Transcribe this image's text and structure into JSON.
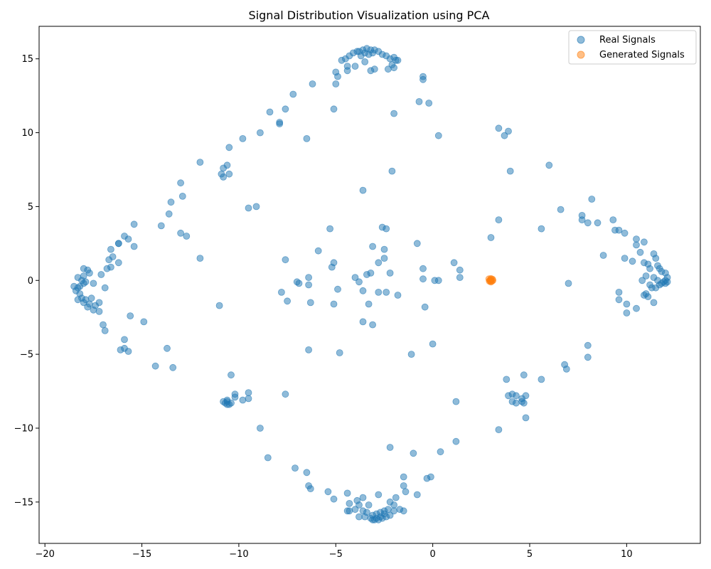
{
  "chart_data": {
    "type": "scatter",
    "title": "Signal Distribution Visualization using PCA",
    "xlabel": "",
    "ylabel": "",
    "xlim": [
      -20.3,
      13.8
    ],
    "ylim": [
      -17.8,
      17.2
    ],
    "xticks": [
      -20,
      -15,
      -10,
      -5,
      0,
      5,
      10
    ],
    "yticks": [
      -15,
      -10,
      -5,
      0,
      5,
      10,
      15
    ],
    "grid": false,
    "legend_position": "top-right",
    "series": [
      {
        "name": "Real Signals",
        "color": "#1f77b4",
        "points": [
          [
            -3.4,
            15.7
          ],
          [
            -3.6,
            15.6
          ],
          [
            -3.2,
            15.6
          ],
          [
            -3.0,
            15.6
          ],
          [
            -3.8,
            15.5
          ],
          [
            -3.5,
            15.4
          ],
          [
            -3.3,
            15.3
          ],
          [
            -3.7,
            15.2
          ],
          [
            -3.1,
            15.4
          ],
          [
            -3.9,
            15.5
          ],
          [
            -4.1,
            15.4
          ],
          [
            -2.8,
            15.5
          ],
          [
            -2.6,
            15.3
          ],
          [
            -2.4,
            15.2
          ],
          [
            -2.2,
            15.0
          ],
          [
            -2.0,
            15.1
          ],
          [
            -4.3,
            15.2
          ],
          [
            -4.5,
            15.0
          ],
          [
            -4.7,
            14.9
          ],
          [
            -1.8,
            14.9
          ],
          [
            -1.9,
            14.9
          ],
          [
            -2.1,
            14.6
          ],
          [
            -2.3,
            14.3
          ],
          [
            -2.0,
            14.4
          ],
          [
            -3.0,
            14.3
          ],
          [
            -3.2,
            14.2
          ],
          [
            -3.5,
            14.8
          ],
          [
            -4.0,
            14.5
          ],
          [
            -4.4,
            14.5
          ],
          [
            -4.4,
            14.2
          ],
          [
            -5.0,
            14.1
          ],
          [
            -4.9,
            13.8
          ],
          [
            -5.0,
            13.3
          ],
          [
            -0.5,
            13.8
          ],
          [
            -0.5,
            13.6
          ],
          [
            -6.2,
            13.3
          ],
          [
            -7.2,
            12.6
          ],
          [
            -0.7,
            12.1
          ],
          [
            -0.2,
            12.0
          ],
          [
            -7.6,
            11.6
          ],
          [
            -8.4,
            11.4
          ],
          [
            -5.1,
            11.6
          ],
          [
            -2.0,
            11.3
          ],
          [
            -7.9,
            10.7
          ],
          [
            -7.9,
            10.6
          ],
          [
            -8.9,
            10.0
          ],
          [
            -9.8,
            9.6
          ],
          [
            -6.5,
            9.6
          ],
          [
            0.3,
            9.8
          ],
          [
            3.4,
            10.3
          ],
          [
            3.9,
            10.1
          ],
          [
            3.7,
            9.8
          ],
          [
            -10.5,
            9.0
          ],
          [
            -12.0,
            8.0
          ],
          [
            -10.6,
            7.8
          ],
          [
            -10.8,
            7.6
          ],
          [
            -10.5,
            7.2
          ],
          [
            -10.9,
            7.2
          ],
          [
            -10.8,
            7.0
          ],
          [
            -13.0,
            6.6
          ],
          [
            -2.1,
            7.4
          ],
          [
            4.0,
            7.4
          ],
          [
            6.0,
            7.8
          ],
          [
            -3.6,
            6.1
          ],
          [
            -12.9,
            5.7
          ],
          [
            -13.5,
            5.3
          ],
          [
            -9.5,
            4.9
          ],
          [
            -9.1,
            5.0
          ],
          [
            -13.6,
            4.5
          ],
          [
            -15.4,
            3.8
          ],
          [
            -14.0,
            3.7
          ],
          [
            3.4,
            4.1
          ],
          [
            6.6,
            4.8
          ],
          [
            8.2,
            5.5
          ],
          [
            7.7,
            4.4
          ],
          [
            7.7,
            4.1
          ],
          [
            8.0,
            3.9
          ],
          [
            8.5,
            3.9
          ],
          [
            9.3,
            4.1
          ],
          [
            9.4,
            3.4
          ],
          [
            9.6,
            3.4
          ],
          [
            9.9,
            3.2
          ],
          [
            5.6,
            3.5
          ],
          [
            -5.3,
            3.5
          ],
          [
            -2.6,
            3.6
          ],
          [
            -2.4,
            3.5
          ],
          [
            -13.0,
            3.2
          ],
          [
            -12.7,
            3.0
          ],
          [
            -15.9,
            3.0
          ],
          [
            -15.7,
            2.8
          ],
          [
            -16.2,
            2.5
          ],
          [
            -16.2,
            2.5
          ],
          [
            3.0,
            2.9
          ],
          [
            10.5,
            2.8
          ],
          [
            10.5,
            2.4
          ],
          [
            10.9,
            2.6
          ],
          [
            -15.4,
            2.3
          ],
          [
            -3.1,
            2.3
          ],
          [
            -2.5,
            2.1
          ],
          [
            -0.8,
            2.5
          ],
          [
            -5.9,
            2.0
          ],
          [
            -16.6,
            2.1
          ],
          [
            -16.5,
            1.6
          ],
          [
            -16.2,
            1.2
          ],
          [
            -16.7,
            1.4
          ],
          [
            -12.0,
            1.5
          ],
          [
            -7.6,
            1.4
          ],
          [
            -5.1,
            1.2
          ],
          [
            -2.5,
            1.5
          ],
          [
            -2.8,
            1.2
          ],
          [
            1.1,
            1.2
          ],
          [
            10.7,
            1.9
          ],
          [
            11.4,
            1.8
          ],
          [
            11.5,
            1.5
          ],
          [
            8.8,
            1.7
          ],
          [
            9.9,
            1.5
          ],
          [
            10.3,
            1.3
          ],
          [
            -17.8,
            0.7
          ],
          [
            -18.0,
            0.8
          ],
          [
            -17.7,
            0.5
          ],
          [
            -18.0,
            0.3
          ],
          [
            -18.3,
            0.2
          ],
          [
            -16.6,
            0.9
          ],
          [
            -16.8,
            0.8
          ],
          [
            -17.1,
            0.4
          ],
          [
            -5.2,
            0.9
          ],
          [
            -3.4,
            0.4
          ],
          [
            -3.2,
            0.5
          ],
          [
            -2.2,
            0.5
          ],
          [
            -4.0,
            0.2
          ],
          [
            -6.4,
            0.2
          ],
          [
            1.4,
            0.7
          ],
          [
            1.4,
            0.2
          ],
          [
            -0.5,
            0.8
          ],
          [
            -0.5,
            0.1
          ],
          [
            0.1,
            0.0
          ],
          [
            0.3,
            0.0
          ],
          [
            10.9,
            1.2
          ],
          [
            11.1,
            1.1
          ],
          [
            11.2,
            0.8
          ],
          [
            11.6,
            1.0
          ],
          [
            11.7,
            0.8
          ],
          [
            11.8,
            0.6
          ],
          [
            12.0,
            0.5
          ],
          [
            12.1,
            0.2
          ],
          [
            12.0,
            0.0
          ],
          [
            11.9,
            -0.1
          ],
          [
            12.0,
            -0.2
          ],
          [
            11.7,
            -0.3
          ],
          [
            11.5,
            -0.5
          ],
          [
            11.3,
            -0.5
          ],
          [
            11.2,
            -0.3
          ],
          [
            11.0,
            0.3
          ],
          [
            10.8,
            0.0
          ],
          [
            11.4,
            0.2
          ],
          [
            11.6,
            0.0
          ],
          [
            11.8,
            -0.2
          ],
          [
            12.1,
            -0.1
          ],
          [
            -18.5,
            -0.4
          ],
          [
            -18.3,
            -0.5
          ],
          [
            -18.4,
            -0.7
          ],
          [
            -18.2,
            -0.4
          ],
          [
            -18.0,
            -0.2
          ],
          [
            -17.9,
            -0.1
          ],
          [
            -18.1,
            0.0
          ],
          [
            -18.2,
            -0.9
          ],
          [
            -18.1,
            -1.2
          ],
          [
            -17.9,
            -1.3
          ],
          [
            -18.3,
            -1.3
          ],
          [
            -18.0,
            -1.5
          ],
          [
            -17.7,
            -1.6
          ],
          [
            -17.8,
            -1.8
          ],
          [
            -17.5,
            -2.0
          ],
          [
            -17.4,
            -1.7
          ],
          [
            -17.2,
            -1.5
          ],
          [
            -17.2,
            -2.1
          ],
          [
            -17.6,
            -1.2
          ],
          [
            -17.5,
            -0.2
          ],
          [
            -16.9,
            -0.5
          ],
          [
            -6.4,
            -0.3
          ],
          [
            -7.0,
            -0.1
          ],
          [
            -6.9,
            -0.2
          ],
          [
            -4.9,
            -0.6
          ],
          [
            -3.8,
            -0.1
          ],
          [
            -3.6,
            -0.7
          ],
          [
            -2.4,
            -0.8
          ],
          [
            -2.8,
            -0.8
          ],
          [
            -1.8,
            -1.0
          ],
          [
            -7.8,
            -0.8
          ],
          [
            7.0,
            -0.2
          ],
          [
            9.6,
            -0.8
          ],
          [
            9.6,
            -1.3
          ],
          [
            10.9,
            -1.0
          ],
          [
            11.0,
            -0.9
          ],
          [
            11.1,
            -1.1
          ],
          [
            11.4,
            -1.5
          ],
          [
            10.5,
            -1.9
          ],
          [
            10.0,
            -1.6
          ],
          [
            10.0,
            -2.2
          ],
          [
            -11.0,
            -1.7
          ],
          [
            -7.5,
            -1.4
          ],
          [
            -6.3,
            -1.5
          ],
          [
            -5.1,
            -1.6
          ],
          [
            -3.3,
            -1.6
          ],
          [
            -0.4,
            -1.8
          ],
          [
            -15.6,
            -2.4
          ],
          [
            -14.9,
            -2.8
          ],
          [
            -3.6,
            -2.8
          ],
          [
            -3.1,
            -3.0
          ],
          [
            -17.0,
            -3.0
          ],
          [
            -16.9,
            -3.4
          ],
          [
            -15.9,
            -4.0
          ],
          [
            -15.9,
            -4.6
          ],
          [
            -16.1,
            -4.7
          ],
          [
            -15.7,
            -4.8
          ],
          [
            -13.7,
            -4.6
          ],
          [
            -6.4,
            -4.7
          ],
          [
            -4.8,
            -4.9
          ],
          [
            -1.1,
            -5.0
          ],
          [
            0.0,
            -4.3
          ],
          [
            8.0,
            -4.4
          ],
          [
            8.0,
            -5.2
          ],
          [
            -14.3,
            -5.8
          ],
          [
            -13.4,
            -5.9
          ],
          [
            6.8,
            -5.7
          ],
          [
            6.9,
            -6.0
          ],
          [
            4.7,
            -6.4
          ],
          [
            5.6,
            -6.7
          ],
          [
            3.8,
            -6.7
          ],
          [
            -10.4,
            -6.4
          ],
          [
            -9.5,
            -7.6
          ],
          [
            -9.8,
            -8.1
          ],
          [
            -9.5,
            -8.0
          ],
          [
            -10.2,
            -7.7
          ],
          [
            -10.2,
            -7.9
          ],
          [
            -7.6,
            -7.7
          ],
          [
            -10.6,
            -8.2
          ],
          [
            -10.7,
            -8.3
          ],
          [
            -10.5,
            -8.4
          ],
          [
            -10.4,
            -8.3
          ],
          [
            -10.8,
            -8.2
          ],
          [
            -10.6,
            -8.1
          ],
          [
            -10.6,
            -8.4
          ],
          [
            3.9,
            -7.8
          ],
          [
            4.1,
            -7.7
          ],
          [
            4.3,
            -7.8
          ],
          [
            4.6,
            -8.0
          ],
          [
            4.8,
            -7.8
          ],
          [
            4.1,
            -8.2
          ],
          [
            4.3,
            -8.3
          ],
          [
            4.6,
            -8.2
          ],
          [
            4.7,
            -8.3
          ],
          [
            1.2,
            -8.2
          ],
          [
            4.8,
            -9.3
          ],
          [
            -8.9,
            -10.0
          ],
          [
            3.4,
            -10.1
          ],
          [
            1.2,
            -10.9
          ],
          [
            -8.5,
            -12.0
          ],
          [
            -2.2,
            -11.3
          ],
          [
            -1.0,
            -11.7
          ],
          [
            0.4,
            -11.6
          ],
          [
            -7.1,
            -12.7
          ],
          [
            -6.5,
            -13.0
          ],
          [
            -0.3,
            -13.4
          ],
          [
            -0.1,
            -13.3
          ],
          [
            -1.5,
            -13.3
          ],
          [
            -6.4,
            -13.9
          ],
          [
            -6.3,
            -14.1
          ],
          [
            -5.4,
            -14.3
          ],
          [
            -5.1,
            -14.8
          ],
          [
            -1.5,
            -13.9
          ],
          [
            -1.4,
            -14.3
          ],
          [
            -0.8,
            -14.5
          ],
          [
            -4.4,
            -14.4
          ],
          [
            -3.6,
            -14.7
          ],
          [
            -3.9,
            -14.9
          ],
          [
            -4.3,
            -15.1
          ],
          [
            -3.8,
            -15.2
          ],
          [
            -3.3,
            -15.2
          ],
          [
            -2.8,
            -14.5
          ],
          [
            -2.2,
            -15.0
          ],
          [
            -2.0,
            -15.2
          ],
          [
            -1.9,
            -14.7
          ],
          [
            -1.7,
            -15.5
          ],
          [
            -1.5,
            -15.6
          ],
          [
            -2.0,
            -15.6
          ],
          [
            -2.3,
            -15.5
          ],
          [
            -2.5,
            -15.6
          ],
          [
            -3.6,
            -15.6
          ],
          [
            -4.0,
            -15.5
          ],
          [
            -4.3,
            -15.6
          ],
          [
            -4.4,
            -15.6
          ],
          [
            -3.8,
            -16.0
          ],
          [
            -3.5,
            -16.0
          ],
          [
            -3.1,
            -15.9
          ],
          [
            -3.0,
            -16.2
          ],
          [
            -2.8,
            -16.2
          ],
          [
            -2.6,
            -16.1
          ],
          [
            -2.4,
            -16.0
          ],
          [
            -2.9,
            -15.8
          ],
          [
            -3.2,
            -16.1
          ],
          [
            -3.4,
            -15.7
          ],
          [
            -2.7,
            -15.7
          ],
          [
            -2.2,
            -15.9
          ],
          [
            -2.5,
            -15.8
          ],
          [
            -3.1,
            -16.2
          ],
          [
            -2.9,
            -16.1
          ],
          [
            -2.7,
            -16.0
          ]
        ]
      },
      {
        "name": "Generated Signals",
        "color": "#ff7f0e",
        "points": [
          [
            3.0,
            0.05
          ],
          [
            2.95,
            0.0
          ],
          [
            3.05,
            -0.05
          ],
          [
            2.9,
            0.1
          ],
          [
            3.1,
            0.0
          ],
          [
            3.0,
            -0.1
          ],
          [
            2.92,
            -0.05
          ],
          [
            3.08,
            0.08
          ],
          [
            3.0,
            0.12
          ],
          [
            2.98,
            -0.02
          ]
        ]
      }
    ]
  }
}
